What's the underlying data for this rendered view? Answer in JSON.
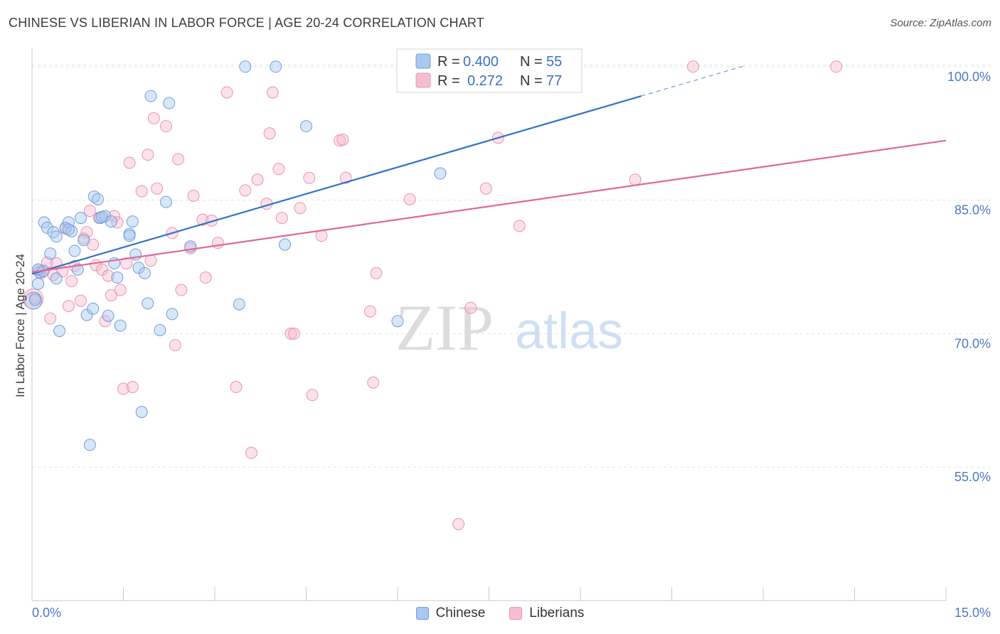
{
  "title": "CHINESE VS LIBERIAN IN LABOR FORCE | AGE 20-24 CORRELATION CHART",
  "source": "Source: ZipAtlas.com",
  "watermark": {
    "zip": "ZIP",
    "atlas": "atlas"
  },
  "colors": {
    "chinese_fill": "#a9c8f0",
    "chinese_stroke": "#6f9fdc",
    "chinese_line": "#2f72c9",
    "liberian_fill": "#f6bdd0",
    "liberian_stroke": "#eb93b2",
    "liberian_line": "#e06992",
    "axis_text": "#4a78c8",
    "grid": "#e3e3e3"
  },
  "legend": {
    "rows": [
      {
        "r_label": "R =",
        "r_value": "0.400",
        "n_label": "N =",
        "n_value": "55"
      },
      {
        "r_label": "R =",
        "r_value": "0.272",
        "n_label": "N =",
        "n_value": "77"
      }
    ]
  },
  "bottom_legend": {
    "chinese": "Chinese",
    "liberians": "Liberians"
  },
  "chart_data": {
    "type": "scatter",
    "title": "CHINESE VS LIBERIAN IN LABOR FORCE | AGE 20-24 CORRELATION CHART",
    "xlabel": "",
    "ylabel": "In Labor Force | Age 20-24",
    "xlim": [
      0,
      15
    ],
    "ylim": [
      40,
      101.5
    ],
    "x_tick_labels": [
      "0.0%",
      "15.0%"
    ],
    "y_ticks": [
      55,
      70,
      85,
      100
    ],
    "y_tick_labels": [
      "55.0%",
      "70.0%",
      "85.0%",
      "100.0%"
    ],
    "grid": true,
    "legend_position": "top-center",
    "series": [
      {
        "name": "Chinese",
        "r": 0.4,
        "n": 55,
        "trend": {
          "x0": 0,
          "y0": 76.7,
          "x1": 10.0,
          "y1": 96.7,
          "dash_to_x": 11.7,
          "dash_to_y": 100.1
        },
        "points": [
          [
            0.05,
            73.8
          ],
          [
            0.1,
            75.6
          ],
          [
            0.12,
            76.9
          ],
          [
            0.18,
            77.0
          ],
          [
            0.2,
            82.5
          ],
          [
            0.25,
            81.9
          ],
          [
            0.3,
            79.0
          ],
          [
            0.35,
            81.4
          ],
          [
            0.4,
            80.9
          ],
          [
            0.4,
            76.2
          ],
          [
            0.45,
            70.3
          ],
          [
            0.55,
            81.9
          ],
          [
            0.6,
            82.5
          ],
          [
            0.65,
            81.5
          ],
          [
            0.7,
            79.3
          ],
          [
            0.75,
            77.2
          ],
          [
            0.8,
            83.0
          ],
          [
            0.85,
            80.5
          ],
          [
            0.9,
            72.1
          ],
          [
            0.95,
            57.5
          ],
          [
            1.0,
            72.8
          ],
          [
            1.02,
            85.4
          ],
          [
            1.08,
            85.1
          ],
          [
            1.12,
            83.0
          ],
          [
            1.2,
            83.2
          ],
          [
            1.25,
            72.0
          ],
          [
            1.3,
            82.6
          ],
          [
            1.35,
            77.9
          ],
          [
            1.4,
            76.3
          ],
          [
            1.45,
            70.9
          ],
          [
            1.6,
            81.2
          ],
          [
            1.65,
            82.6
          ],
          [
            1.7,
            78.9
          ],
          [
            1.75,
            77.4
          ],
          [
            1.8,
            61.2
          ],
          [
            1.85,
            76.8
          ],
          [
            1.9,
            73.4
          ],
          [
            1.95,
            96.7
          ],
          [
            2.1,
            70.4
          ],
          [
            2.2,
            84.8
          ],
          [
            2.25,
            95.9
          ],
          [
            2.3,
            72.2
          ],
          [
            2.6,
            79.8
          ],
          [
            3.4,
            73.3
          ],
          [
            3.5,
            100.0
          ],
          [
            4.0,
            100.0
          ],
          [
            4.15,
            80.0
          ],
          [
            4.5,
            93.3
          ],
          [
            6.0,
            71.4
          ],
          [
            6.7,
            88.0
          ],
          [
            8.5,
            100.0
          ],
          [
            1.15,
            83.1
          ],
          [
            0.6,
            81.7
          ],
          [
            0.1,
            77.2
          ],
          [
            1.6,
            81.0
          ]
        ]
      },
      {
        "name": "Liberians",
        "r": 0.272,
        "n": 77,
        "trend": {
          "x0": 0,
          "y0": 76.9,
          "x1": 15,
          "y1": 91.7
        },
        "points": [
          [
            0.05,
            74.0
          ],
          [
            0.1,
            77.2
          ],
          [
            0.15,
            76.8
          ],
          [
            0.2,
            77.1
          ],
          [
            0.25,
            78.0
          ],
          [
            0.3,
            71.7
          ],
          [
            0.35,
            76.6
          ],
          [
            0.4,
            77.9
          ],
          [
            0.5,
            77.0
          ],
          [
            0.55,
            81.8
          ],
          [
            0.6,
            73.1
          ],
          [
            0.65,
            75.9
          ],
          [
            0.7,
            77.6
          ],
          [
            0.8,
            73.7
          ],
          [
            0.85,
            80.7
          ],
          [
            0.9,
            81.4
          ],
          [
            0.95,
            83.8
          ],
          [
            1.0,
            80.0
          ],
          [
            1.05,
            77.7
          ],
          [
            1.1,
            83.0
          ],
          [
            1.15,
            77.2
          ],
          [
            1.2,
            71.4
          ],
          [
            1.25,
            76.5
          ],
          [
            1.3,
            74.3
          ],
          [
            1.35,
            83.2
          ],
          [
            1.4,
            82.5
          ],
          [
            1.45,
            74.9
          ],
          [
            1.5,
            63.8
          ],
          [
            1.55,
            77.9
          ],
          [
            1.6,
            89.2
          ],
          [
            1.65,
            64.0
          ],
          [
            1.8,
            86.0
          ],
          [
            1.9,
            90.1
          ],
          [
            1.95,
            78.2
          ],
          [
            2.0,
            94.2
          ],
          [
            2.05,
            86.3
          ],
          [
            2.2,
            93.3
          ],
          [
            2.3,
            81.3
          ],
          [
            2.35,
            68.7
          ],
          [
            2.4,
            89.6
          ],
          [
            2.45,
            74.9
          ],
          [
            2.6,
            79.6
          ],
          [
            2.65,
            85.5
          ],
          [
            2.8,
            82.8
          ],
          [
            2.85,
            76.3
          ],
          [
            2.95,
            82.7
          ],
          [
            3.05,
            80.2
          ],
          [
            3.2,
            97.1
          ],
          [
            3.35,
            64.0
          ],
          [
            3.5,
            86.1
          ],
          [
            3.6,
            56.6
          ],
          [
            3.7,
            87.3
          ],
          [
            3.85,
            84.6
          ],
          [
            3.9,
            92.5
          ],
          [
            3.95,
            97.1
          ],
          [
            4.05,
            88.5
          ],
          [
            4.1,
            83.0
          ],
          [
            4.25,
            70.0
          ],
          [
            4.3,
            70.0
          ],
          [
            4.4,
            84.1
          ],
          [
            4.55,
            87.5
          ],
          [
            4.6,
            63.1
          ],
          [
            4.75,
            81.0
          ],
          [
            5.05,
            91.7
          ],
          [
            5.1,
            91.8
          ],
          [
            5.15,
            87.5
          ],
          [
            5.55,
            72.5
          ],
          [
            5.6,
            64.5
          ],
          [
            5.65,
            76.8
          ],
          [
            6.2,
            85.1
          ],
          [
            7.0,
            48.6
          ],
          [
            7.2,
            72.9
          ],
          [
            7.45,
            86.3
          ],
          [
            7.65,
            92.0
          ],
          [
            8.0,
            82.1
          ],
          [
            9.9,
            87.3
          ],
          [
            10.85,
            100.0
          ]
        ]
      }
    ],
    "extra_points": {
      "liberians_right": [
        13.2,
        100.0
      ]
    }
  }
}
